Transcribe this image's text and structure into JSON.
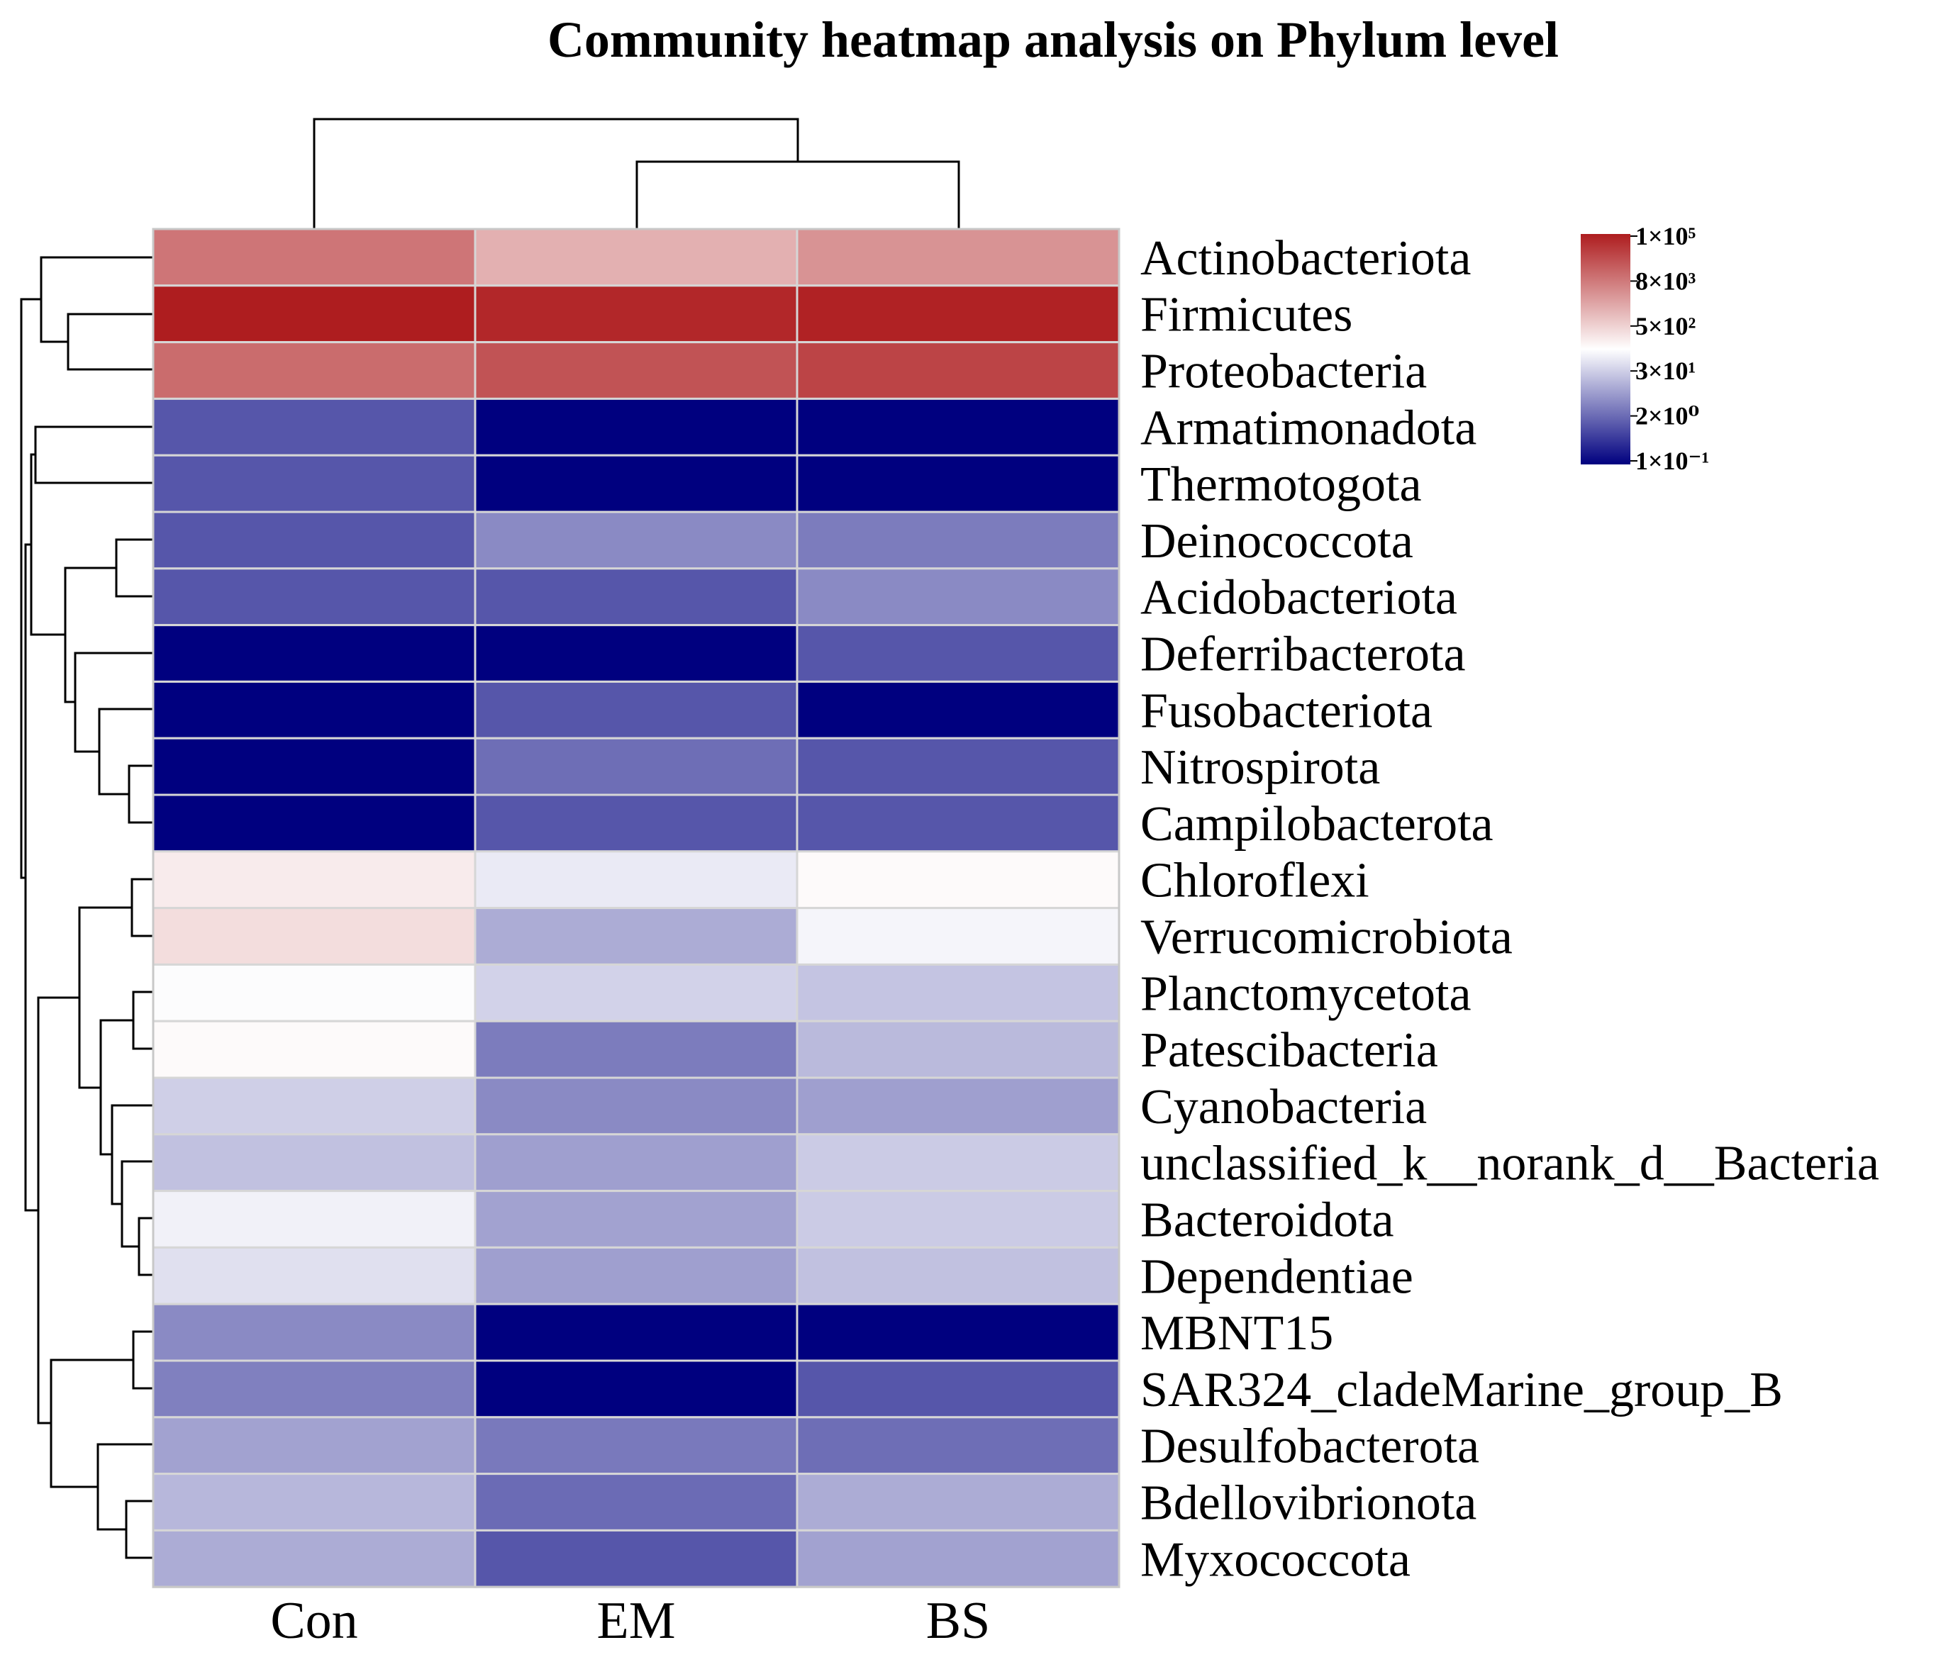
{
  "chart_data": {
    "type": "heatmap",
    "title": "Community heatmap analysis on Phylum level",
    "columns": [
      "Con",
      "EM",
      "BS"
    ],
    "rows": [
      "Actinobacteriota",
      "Firmicutes",
      "Proteobacteria",
      "Armatimonadota",
      "Thermotogota",
      "Deinococcota",
      "Acidobacteriota",
      "Deferribacterota",
      "Fusobacteriota",
      "Nitrospirota",
      "Campilobacterota",
      "Chloroflexi",
      "Verrucomicrobiota",
      "Planctomycetota",
      "Patescibacteria",
      "Cyanobacteria",
      "unclassified_k__norank_d__Bacteria",
      "Bacteroidota",
      "Dependentiae",
      "MBNT15",
      "SAR324_cladeMarine_group_B",
      "Desulfobacterota",
      "Bdellovibrionota",
      "Myxococcota"
    ],
    "values_log10": [
      [
        4.1,
        3.5,
        3.8
      ],
      [
        5.0,
        4.9,
        4.95
      ],
      [
        4.2,
        4.45,
        4.6
      ],
      [
        0.25,
        -1.0,
        -1.0
      ],
      [
        0.25,
        -1.0,
        -1.0
      ],
      [
        0.25,
        1.0,
        0.8
      ],
      [
        0.25,
        0.25,
        1.0
      ],
      [
        -1.0,
        -1.0,
        0.25
      ],
      [
        -1.0,
        0.25,
        -1.0
      ],
      [
        -1.0,
        0.6,
        0.25
      ],
      [
        -1.0,
        0.25,
        0.25
      ],
      [
        2.9,
        2.4,
        2.75
      ],
      [
        3.05,
        1.5,
        2.55
      ],
      [
        2.65,
        2.05,
        1.85
      ],
      [
        2.75,
        0.8,
        1.7
      ],
      [
        2.0,
        1.0,
        1.3
      ],
      [
        1.8,
        1.3,
        1.95
      ],
      [
        2.5,
        1.35,
        1.95
      ],
      [
        2.25,
        1.3,
        1.8
      ],
      [
        1.0,
        -1.0,
        -1.0
      ],
      [
        0.85,
        -1.0,
        0.25
      ],
      [
        1.35,
        0.75,
        0.6
      ],
      [
        1.65,
        0.55,
        1.5
      ],
      [
        1.5,
        0.25,
        1.35
      ]
    ],
    "value_range_log10": [
      -1.0,
      5.0
    ],
    "colorbar": {
      "ticks": [
        "1×10⁵",
        "8×10³",
        "5×10²",
        "3×10¹",
        "2×10⁰",
        "1×10⁻¹"
      ],
      "low_color": "#00007f",
      "mid_color": "#ffffff",
      "high_color": "#ae1d1f",
      "mid_value_log10": 2.7
    },
    "column_dendrogram": [
      [
        "EM",
        "BS"
      ],
      "Con"
    ],
    "row_dendrogram": "hierarchical clustering of the 24 phyla"
  }
}
